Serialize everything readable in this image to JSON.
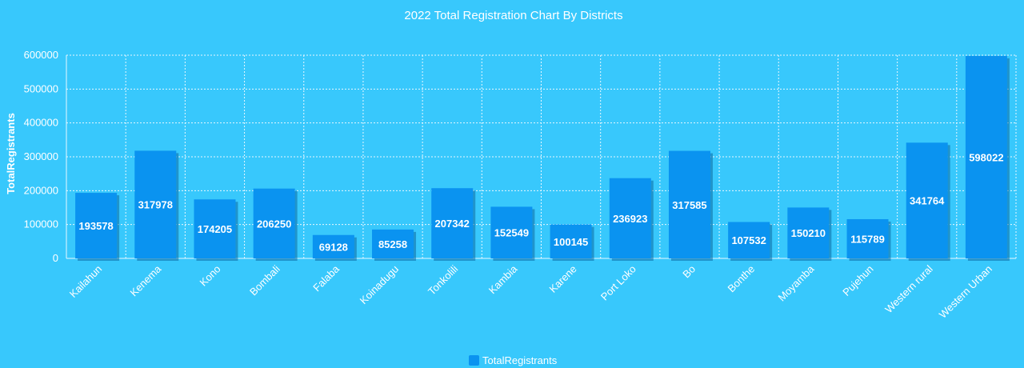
{
  "chart_data": {
    "type": "bar",
    "title": "2022 Total Registration Chart By Districts",
    "ylabel": "TotalRegistrants",
    "xlabel": "",
    "ylim": [
      0,
      600000
    ],
    "yticks": [
      0,
      100000,
      200000,
      300000,
      400000,
      500000,
      600000
    ],
    "ytick_labels": [
      "0",
      "100000",
      "200000",
      "300000",
      "400000",
      "500000",
      "600000"
    ],
    "categories": [
      "Kailahun",
      "Kenema",
      "Kono",
      "Bombali",
      "Falaba",
      "Koinadugu",
      "Tonkolili",
      "Kambia",
      "Karene",
      "Port Loko",
      "Bo",
      "Bonthe",
      "Moyamba",
      "Pujehun",
      "Western rural",
      "Western Urban"
    ],
    "series": [
      {
        "name": "TotalRegistrants",
        "values": [
          193578,
          317978,
          174205,
          206250,
          69128,
          85258,
          207342,
          152549,
          100145,
          236923,
          317585,
          107532,
          150210,
          115789,
          341764,
          598022
        ],
        "value_labels": [
          "193578",
          "317978",
          "174205",
          "206250",
          "69128",
          "85258",
          "207342",
          "152549",
          "100145",
          "236923",
          "317585",
          "107532",
          "150210",
          "115789",
          "341764",
          "598022"
        ]
      }
    ],
    "grid": true,
    "legend": "bottom-center",
    "colors": {
      "background": "#38c8fc",
      "bar": "#0a93f0",
      "bar_shadow": "#0d6aa3",
      "grid": "#e8f8ff",
      "text": "#ffffff"
    }
  }
}
